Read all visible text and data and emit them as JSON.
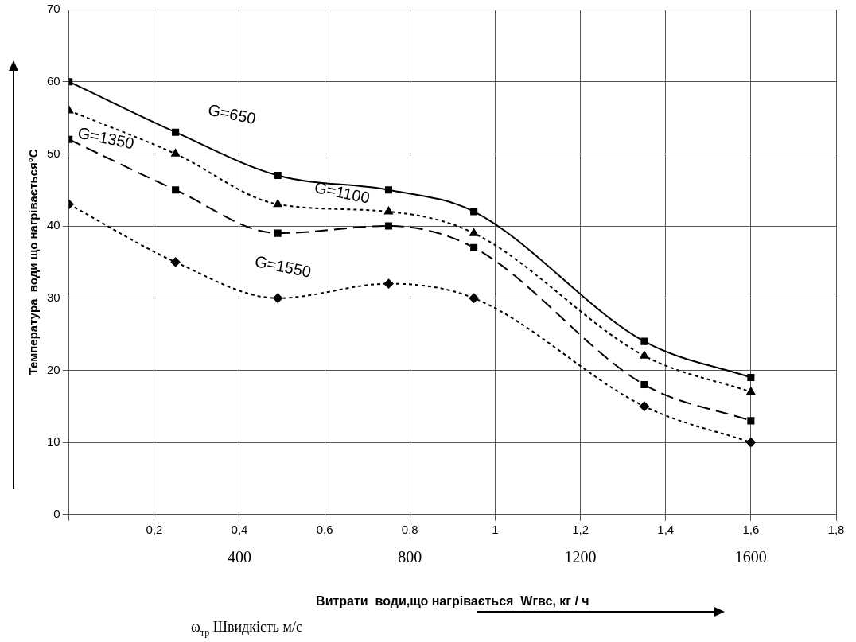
{
  "chart_data": {
    "type": "line",
    "xlabel": "ω$_{тр}$ Швидкість м/с",
    "x2label": "Витрати  води,що нагрівається  Wгвс, кг / ч",
    "ylabel": "Температура  води що нагрівається°C",
    "x": [
      0,
      0.25,
      0.49,
      0.75,
      0.95,
      1.35,
      1.6
    ],
    "series": [
      {
        "name": "G=650",
        "color": "#000000",
        "marker": "square",
        "line_style": "solid",
        "values": [
          60,
          53,
          47,
          45,
          42,
          24,
          19
        ]
      },
      {
        "name": "G=1100",
        "color": "#000000",
        "marker": "triangle",
        "line_style": "dotted",
        "values": [
          56,
          50,
          43,
          42,
          39,
          22,
          17
        ]
      },
      {
        "name": "G=1350",
        "color": "#000000",
        "marker": "square",
        "line_style": "dashed",
        "values": [
          52,
          45,
          39,
          40,
          37,
          18,
          13
        ]
      },
      {
        "name": "G=1550",
        "color": "#000000",
        "marker": "diamond",
        "line_style": "dotted",
        "values": [
          43,
          35,
          30,
          32,
          30,
          15,
          10
        ]
      }
    ],
    "xlim": [
      0,
      1.8
    ],
    "xticks": [
      {
        "value": 0,
        "label": null
      },
      {
        "value": 0.2,
        "label": "0,2"
      },
      {
        "value": 0.4,
        "label": "0,4"
      },
      {
        "value": 0.6,
        "label": "0,6"
      },
      {
        "value": 0.8,
        "label": "0,8"
      },
      1,
      {
        "value": 1.2,
        "label": "1,2"
      },
      {
        "value": 1.4,
        "label": "1,4"
      },
      {
        "value": 1.6,
        "label": "1,6"
      },
      {
        "value": 1.8,
        "label": "1,8"
      }
    ],
    "x2lim": [
      0,
      1800
    ],
    "x2ticks": [
      400,
      800,
      1200,
      1600
    ],
    "ylim": [
      0,
      70
    ],
    "yticks": [
      0,
      10,
      20,
      30,
      40,
      50,
      60,
      70
    ],
    "grid": true,
    "legend": false
  }
}
